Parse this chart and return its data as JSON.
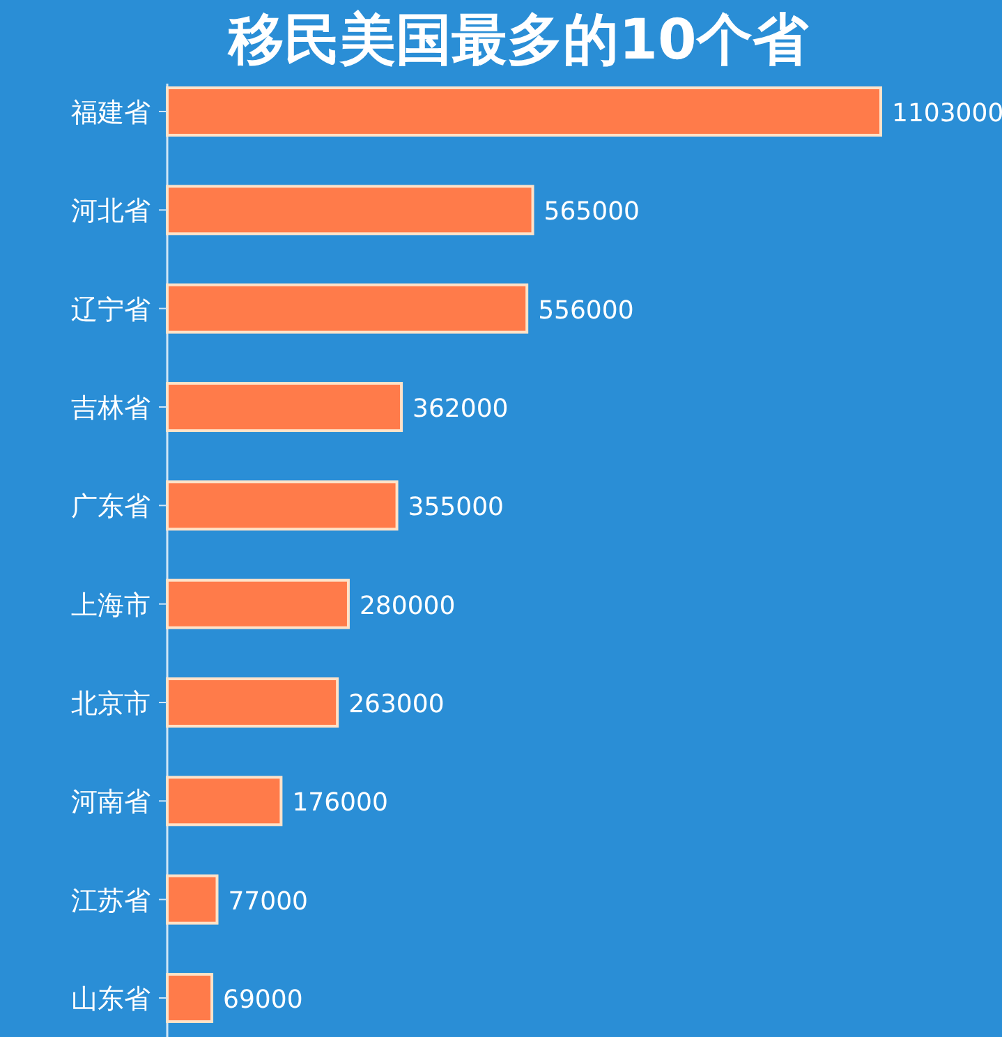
{
  "chart_data": {
    "type": "bar",
    "orientation": "horizontal",
    "title": "移民美国最多的10个省",
    "categories": [
      "福建省",
      "河北省",
      "辽宁省",
      "吉林省",
      "广东省",
      "上海市",
      "北京市",
      "河南省",
      "江苏省",
      "山东省"
    ],
    "values": [
      1103000,
      565000,
      556000,
      362000,
      355000,
      280000,
      263000,
      176000,
      77000,
      69000
    ],
    "color": "#ff7b4a",
    "data_labels": true
  }
}
